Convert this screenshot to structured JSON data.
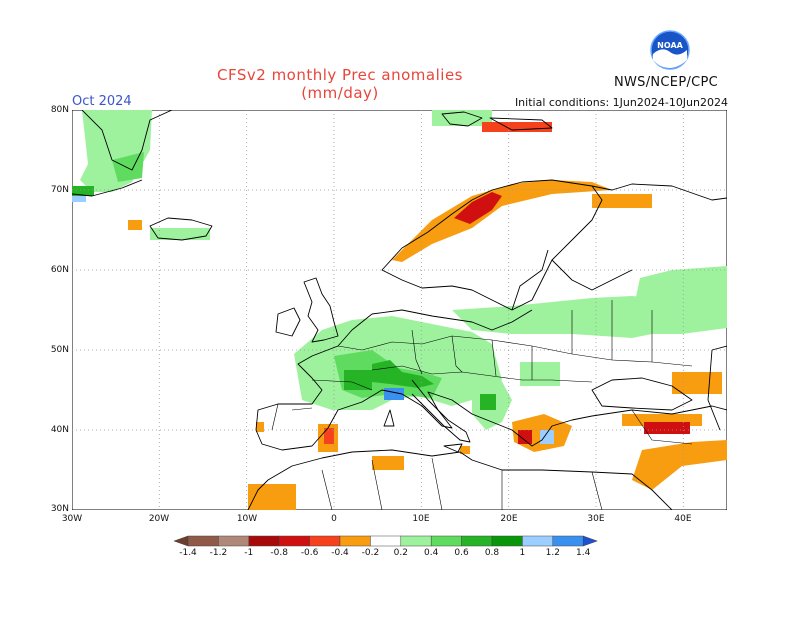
{
  "header": {
    "title": "CFSv2 monthly Prec anomalies (mm/day)",
    "season": "Oct 2024",
    "initial_conditions": "Initial conditions: 1Jun2024-10Jun2024",
    "agency": "NWS/NCEP/CPC",
    "logo_text": "NOAA"
  },
  "axes": {
    "lat_labels": [
      "80N",
      "70N",
      "60N",
      "50N",
      "40N",
      "30N"
    ],
    "lon_labels": [
      "30W",
      "20W",
      "10W",
      "0",
      "10E",
      "20E",
      "30E",
      "40E"
    ]
  },
  "colorbar": {
    "labels": [
      "-1.4",
      "-1.2",
      "-1",
      "-0.8",
      "-0.6",
      "-0.4",
      "-0.2",
      "0.2",
      "0.4",
      "0.6",
      "0.8",
      "1",
      "1.2",
      "1.4"
    ],
    "colors": [
      "#6b3e2e",
      "#8f5a48",
      "#b0887a",
      "#a80a0a",
      "#d01010",
      "#f5421c",
      "#f89c10",
      "#ffffff",
      "#9ef29e",
      "#5fdc5f",
      "#26b426",
      "#0a960a",
      "#9ccfff",
      "#3a90ee",
      "#1e50d4"
    ]
  },
  "colors": {
    "title": "#e8453c",
    "season": "#3a56c8",
    "land_outline": "#000000",
    "grid": "#9a9a9a"
  }
}
